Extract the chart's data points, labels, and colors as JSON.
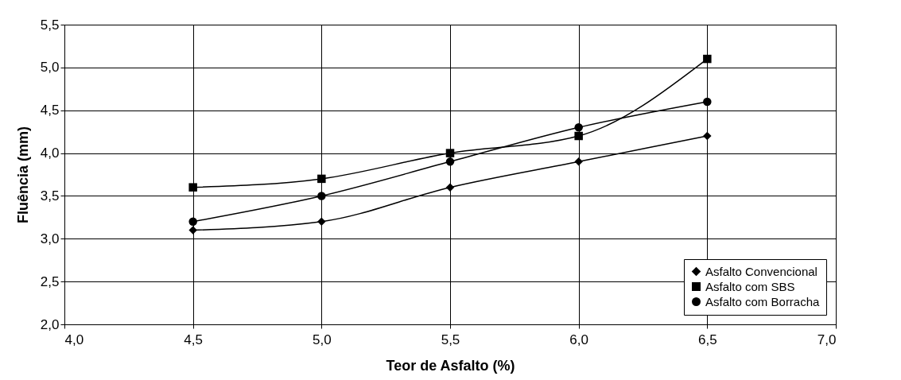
{
  "chart_data": {
    "type": "line",
    "xlabel": "Teor de Asfalto (%)",
    "ylabel": "Fluência (mm)",
    "x": [
      4.5,
      5.0,
      5.5,
      6.0,
      6.5
    ],
    "series": [
      {
        "name": "Asfalto Convencional",
        "color": "#000000",
        "marker": "diamond",
        "values": [
          3.1,
          3.2,
          3.6,
          3.9,
          4.2
        ]
      },
      {
        "name": "Asfalto com SBS",
        "color": "#000000",
        "marker": "square",
        "values": [
          3.6,
          3.7,
          4.0,
          4.2,
          5.1
        ]
      },
      {
        "name": "Asfalto com Borracha",
        "color": "#000000",
        "marker": "circle",
        "values": [
          3.2,
          3.5,
          3.9,
          4.3,
          4.6
        ]
      }
    ],
    "xlim": [
      4.0,
      7.0
    ],
    "xticks": [
      {
        "value": 4.0,
        "label": "4,0"
      },
      {
        "value": 4.5,
        "label": "4,5"
      },
      {
        "value": 5.0,
        "label": "5,0"
      },
      {
        "value": 5.5,
        "label": "5,5"
      },
      {
        "value": 6.0,
        "label": "6,0"
      },
      {
        "value": 6.5,
        "label": "6,5"
      },
      {
        "value": 7.0,
        "label": "7,0"
      }
    ],
    "ylim": [
      2.0,
      5.5
    ],
    "yticks": [
      {
        "value": 2.0,
        "label": "2,0"
      },
      {
        "value": 2.5,
        "label": "2,5"
      },
      {
        "value": 3.0,
        "label": "3,0"
      },
      {
        "value": 3.5,
        "label": "3,5"
      },
      {
        "value": 4.0,
        "label": "4,0"
      },
      {
        "value": 4.5,
        "label": "4,5"
      },
      {
        "value": 5.0,
        "label": "5,0"
      },
      {
        "value": 5.5,
        "label": "5,5"
      }
    ],
    "grid": true,
    "legend": "bottom right",
    "line_style": "solid"
  }
}
